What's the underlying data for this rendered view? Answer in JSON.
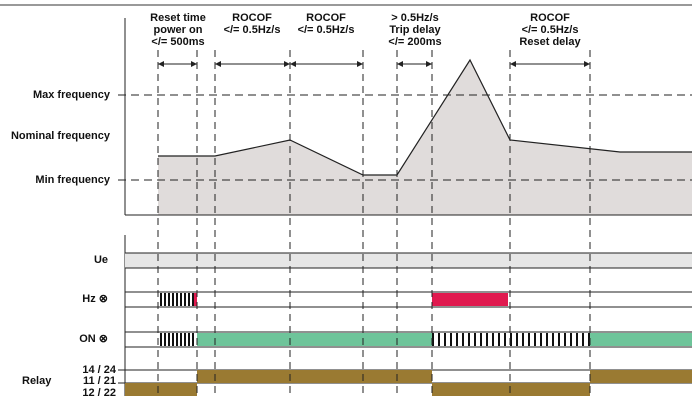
{
  "annotations": [
    {
      "lines": [
        "Reset time",
        "power on",
        "</= 500ms"
      ]
    },
    {
      "lines": [
        "ROCOF",
        "</= 0.5Hz/s"
      ]
    },
    {
      "lines": [
        "ROCOF",
        "</= 0.5Hz/s"
      ]
    },
    {
      "lines": [
        "> 0.5Hz/s",
        "Trip delay",
        "</= 200ms"
      ]
    },
    {
      "lines": [
        "ROCOF",
        "</= 0.5Hz/s",
        "Reset delay"
      ]
    }
  ],
  "frequency_levels": {
    "max": "Max frequency",
    "nominal": "Nominal frequency",
    "min": "Min frequency"
  },
  "rows": {
    "ue": "Ue",
    "hz": "Hz ⊗",
    "on": "ON ⊗",
    "relay": "Relay",
    "contact_no": "14 / 24",
    "contact_common": "11 / 21",
    "contact_nc": "12 / 22"
  }
}
